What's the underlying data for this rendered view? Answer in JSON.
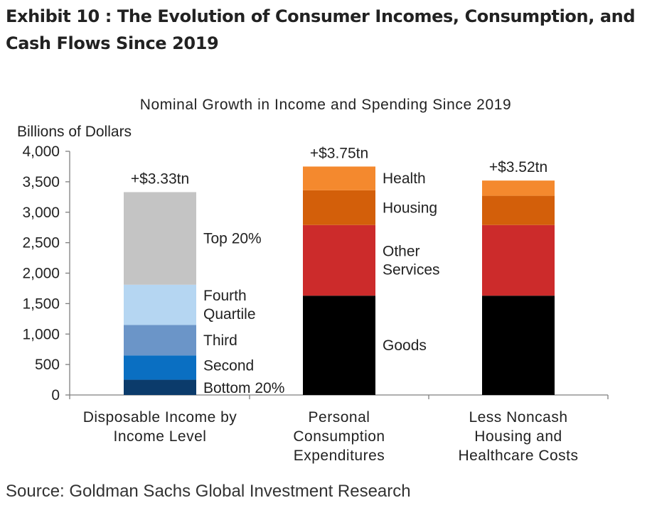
{
  "exhibit": {
    "title": "Exhibit 10 : The Evolution of Consumer Incomes, Consumption, and Cash Flows Since 2019",
    "source": "Source: Goldman Sachs Global Investment Research"
  },
  "chart_data": {
    "type": "bar",
    "stacked": true,
    "title": "Nominal Growth in Income and Spending Since 2019",
    "ylabel": "Billions of Dollars",
    "xlabel": "",
    "ylim": [
      0,
      4000
    ],
    "yticks": [
      "0",
      "500",
      "1,000",
      "1,500",
      "2,000",
      "2,500",
      "3,000",
      "3,500",
      "4,000"
    ],
    "ytick_values": [
      0,
      500,
      1000,
      1500,
      2000,
      2500,
      3000,
      3500,
      4000
    ],
    "grid": false,
    "categories": [
      [
        "Disposable Income by",
        "Income Level"
      ],
      [
        "Personal",
        "Consumption",
        "Expenditures"
      ],
      [
        "Less Noncash",
        "Housing and",
        "Healthcare Costs"
      ]
    ],
    "bars": [
      {
        "total_label": "+$3.33tn",
        "segments": [
          {
            "name": "Bottom 20%",
            "value": 250,
            "color": "#0b3b6b",
            "label_lines": [
              "Bottom 20%"
            ]
          },
          {
            "name": "Second",
            "value": 400,
            "color": "#0a6fc2",
            "label_lines": [
              "Second"
            ]
          },
          {
            "name": "Third",
            "value": 500,
            "color": "#6b95c8",
            "label_lines": [
              "Third"
            ]
          },
          {
            "name": "Fourth Quartile",
            "value": 660,
            "color": "#b5d6f2",
            "label_lines": [
              "Fourth",
              "Quartile"
            ]
          },
          {
            "name": "Top 20%",
            "value": 1520,
            "color": "#c4c4c4",
            "label_lines": [
              "Top 20%"
            ]
          }
        ]
      },
      {
        "total_label": "+$3.75tn",
        "segments": [
          {
            "name": "Goods",
            "value": 1630,
            "color": "#000000",
            "label_lines": [
              "Goods"
            ]
          },
          {
            "name": "Other Services",
            "value": 1160,
            "color": "#cc2b2b",
            "label_lines": [
              "Other",
              "Services"
            ]
          },
          {
            "name": "Housing",
            "value": 570,
            "color": "#d35f0a",
            "label_lines": [
              "Housing"
            ]
          },
          {
            "name": "Health",
            "value": 390,
            "color": "#f4892e",
            "label_lines": [
              "Health"
            ]
          }
        ]
      },
      {
        "total_label": "+$3.52tn",
        "segments": [
          {
            "name": "Goods",
            "value": 1630,
            "color": "#000000",
            "label_lines": []
          },
          {
            "name": "Other Services",
            "value": 1160,
            "color": "#cc2b2b",
            "label_lines": []
          },
          {
            "name": "Housing",
            "value": 480,
            "color": "#d35f0a",
            "label_lines": []
          },
          {
            "name": "Health",
            "value": 250,
            "color": "#f4892e",
            "label_lines": []
          }
        ]
      }
    ]
  }
}
